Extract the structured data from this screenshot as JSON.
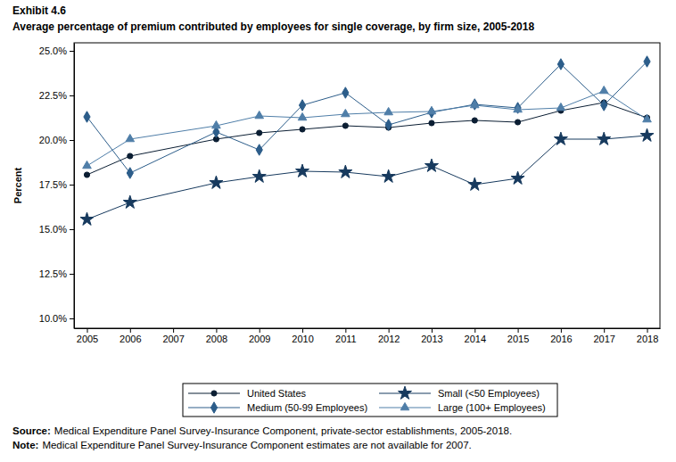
{
  "chart_data": {
    "type": "line",
    "header": "Exhibit 4.6",
    "title": "Average percentage of premium contributed by employees for single coverage, by firm size, 2005-2018",
    "y_label": "Percent",
    "x": [
      2005,
      2006,
      2008,
      2009,
      2010,
      2011,
      2012,
      2013,
      2014,
      2015,
      2016,
      2017,
      2018
    ],
    "series": [
      {
        "name": "United States",
        "color": "#0b1e33",
        "marker": "circle",
        "values": [
          18.05,
          19.1,
          20.05,
          20.4,
          20.6,
          20.8,
          20.7,
          20.95,
          21.1,
          21.0,
          21.65,
          22.1,
          21.25
        ]
      },
      {
        "name": "Small (<50 Employees)",
        "color": "#173a5e",
        "marker": "star",
        "values": [
          15.55,
          16.5,
          17.6,
          17.95,
          18.25,
          18.2,
          17.95,
          18.55,
          17.5,
          17.85,
          20.05,
          20.05,
          20.25
        ]
      },
      {
        "name": "Medium (50-99 Employees)",
        "color": "#2c5d8a",
        "marker": "diamond",
        "values": [
          21.3,
          18.15,
          20.45,
          19.45,
          21.95,
          22.65,
          20.85,
          21.55,
          22.0,
          21.8,
          24.25,
          21.95,
          24.4
        ]
      },
      {
        "name": "Large (100+ Employees)",
        "color": "#4f7ea8",
        "marker": "triangle",
        "values": [
          18.55,
          20.05,
          20.8,
          21.35,
          21.25,
          21.45,
          21.55,
          21.6,
          21.95,
          21.7,
          21.8,
          22.75,
          21.15
        ]
      }
    ],
    "xlim": [
      2004.7,
      2018.3
    ],
    "xticks": [
      2005,
      2006,
      2007,
      2008,
      2009,
      2010,
      2011,
      2012,
      2013,
      2014,
      2015,
      2016,
      2017,
      2018
    ],
    "ylim": [
      9.45,
      25.45
    ],
    "yticks": [
      {
        "value": 10,
        "label": "10.0%"
      },
      {
        "value": 12.5,
        "label": "12.5%"
      },
      {
        "value": 15,
        "label": "15.0%"
      },
      {
        "value": 17.5,
        "label": "17.5%"
      },
      {
        "value": 20,
        "label": "20.0%"
      },
      {
        "value": 22.5,
        "label": "22.5%"
      },
      {
        "value": 25,
        "label": "25.0%"
      }
    ],
    "grid": false,
    "legend": "bottom",
    "annotations": [
      {
        "label": "Source:",
        "text": "Medical Expenditure Panel Survey-Insurance Component, private-sector establishments, 2005-2018."
      },
      {
        "label": "Note:",
        "text": "Medical Expenditure Panel Survey-Insurance Component estimates are not available for 2007."
      }
    ]
  }
}
